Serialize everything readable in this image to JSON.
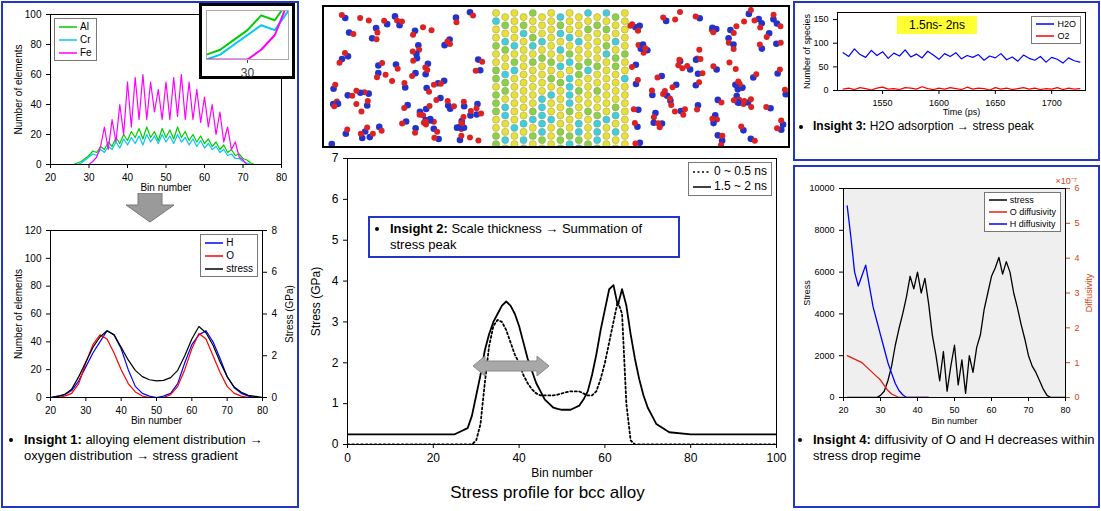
{
  "chart_data": [
    {
      "type": "line",
      "xlabel": "Bin number",
      "ylabel": "Number of elements",
      "x": [
        20,
        21,
        22,
        23,
        24,
        25,
        26,
        27,
        28,
        29,
        30,
        31,
        32,
        33,
        34,
        35,
        36,
        37,
        38,
        39,
        40,
        41,
        42,
        43,
        44,
        45,
        46,
        47,
        48,
        49,
        50,
        51,
        52,
        53,
        54,
        55,
        56,
        57,
        58,
        59,
        60,
        61,
        62,
        63,
        64,
        65,
        66,
        67,
        68,
        69,
        70,
        71,
        72,
        73,
        74,
        75,
        76,
        77,
        78,
        79,
        80
      ],
      "xlim": [
        20,
        80
      ],
      "xticks": [
        20,
        30,
        40,
        50,
        60,
        70,
        80
      ],
      "ylim": [
        0,
        100
      ],
      "yticks": [
        0,
        20,
        40,
        60,
        80,
        100
      ],
      "grid": false,
      "legend": "top-left",
      "series": [
        {
          "name": "Al",
          "color": "#00cc00",
          "values": [
            0,
            0,
            0,
            0,
            0,
            0,
            0,
            1,
            2,
            4,
            6,
            9,
            8,
            12,
            10,
            15,
            12,
            18,
            14,
            20,
            16,
            22,
            18,
            24,
            17,
            25,
            18,
            22,
            16,
            24,
            18,
            23,
            17,
            25,
            18,
            22,
            16,
            20,
            15,
            19,
            14,
            17,
            12,
            15,
            10,
            13,
            8,
            10,
            6,
            7,
            4,
            3,
            1,
            0,
            0,
            0,
            0,
            0,
            0,
            0,
            0
          ]
        },
        {
          "name": "Cr",
          "color": "#00c8f0",
          "values": [
            0,
            0,
            0,
            0,
            0,
            0,
            0,
            0,
            1,
            3,
            5,
            7,
            6,
            10,
            8,
            12,
            10,
            15,
            11,
            17,
            13,
            18,
            14,
            19,
            13,
            20,
            15,
            19,
            14,
            20,
            15,
            19,
            14,
            20,
            15,
            18,
            13,
            17,
            12,
            16,
            11,
            14,
            10,
            12,
            8,
            10,
            6,
            7,
            4,
            4,
            2,
            1,
            0,
            0,
            0,
            0,
            0,
            0,
            0,
            0,
            0
          ]
        },
        {
          "name": "Fe",
          "color": "#ff00ff",
          "values": [
            0,
            0,
            0,
            0,
            0,
            0,
            0,
            0,
            0,
            0,
            0,
            2,
            5,
            12,
            25,
            10,
            30,
            15,
            40,
            20,
            55,
            25,
            58,
            30,
            60,
            30,
            55,
            35,
            50,
            30,
            55,
            30,
            58,
            32,
            60,
            30,
            55,
            30,
            50,
            28,
            45,
            25,
            40,
            20,
            35,
            15,
            25,
            10,
            15,
            5,
            3,
            0,
            0,
            0,
            0,
            0,
            0,
            0,
            0,
            0,
            0
          ]
        }
      ],
      "inset": {
        "xlim": [
          27,
          33
        ],
        "ylim": [
          0,
          10
        ],
        "xticks": [
          30
        ],
        "tick_labels": "x"
      }
    },
    {
      "type": "line",
      "xlabel": "Bin number",
      "ylabel": "Number of elements",
      "y2label": "Stress (GPa)",
      "x": [
        20,
        22,
        24,
        26,
        28,
        30,
        32,
        34,
        36,
        38,
        40,
        42,
        44,
        46,
        48,
        50,
        52,
        54,
        56,
        58,
        60,
        62,
        64,
        66,
        68,
        70,
        72,
        74,
        76,
        78,
        80
      ],
      "xlim": [
        20,
        80
      ],
      "xticks": [
        20,
        30,
        40,
        50,
        60,
        70,
        80
      ],
      "ylim": [
        0,
        120
      ],
      "yticks": [
        0,
        20,
        40,
        60,
        80,
        100,
        120
      ],
      "y2lim": [
        0,
        8
      ],
      "y2ticks": [
        0,
        2,
        4,
        6,
        8
      ],
      "grid": false,
      "legend": "top-right",
      "series": [
        {
          "name": "H",
          "color": "#0000ff",
          "values": [
            0,
            1,
            2,
            5,
            12,
            22,
            32,
            40,
            48,
            45,
            35,
            20,
            8,
            3,
            1,
            0,
            1,
            3,
            10,
            25,
            38,
            45,
            48,
            40,
            28,
            15,
            7,
            3,
            1,
            0,
            0
          ]
        },
        {
          "name": "O",
          "color": "#ff0000",
          "values": [
            0,
            0,
            1,
            3,
            10,
            25,
            38,
            45,
            42,
            32,
            20,
            10,
            4,
            1,
            0,
            0,
            0,
            2,
            8,
            20,
            35,
            46,
            42,
            30,
            18,
            8,
            3,
            1,
            0,
            0,
            0
          ]
        },
        {
          "name": "stress",
          "color": "#000000",
          "axis": "y2",
          "values": [
            0,
            0.05,
            0.15,
            0.4,
            1.0,
            1.7,
            2.4,
            2.9,
            3.2,
            3.0,
            2.4,
            1.8,
            1.3,
            1.0,
            0.85,
            0.8,
            0.82,
            0.95,
            1.3,
            2.0,
            2.8,
            3.4,
            3.1,
            2.5,
            1.7,
            1.0,
            0.5,
            0.25,
            0.1,
            0.05,
            0
          ]
        }
      ],
      "annotations": [
        "Insight 1: alloying element distribution → oxygen distribution → stress gradient"
      ]
    },
    {
      "type": "line",
      "title": "Stress profile for bcc alloy",
      "xlabel": "Bin number",
      "ylabel": "Stress (GPa)",
      "x": [
        0,
        5,
        10,
        15,
        20,
        25,
        28,
        29,
        30,
        31,
        32,
        33,
        34,
        35,
        36,
        37,
        38,
        39,
        40,
        41,
        42,
        43,
        44,
        45,
        46,
        47,
        48,
        49,
        50,
        51,
        52,
        53,
        54,
        55,
        56,
        57,
        58,
        59,
        60,
        61,
        62,
        63,
        64,
        65,
        66,
        67,
        68,
        69,
        70,
        71,
        72,
        75,
        80,
        85,
        90,
        95,
        100
      ],
      "xlim": [
        0,
        100
      ],
      "xticks": [
        0,
        20,
        40,
        60,
        80,
        100
      ],
      "ylim": [
        0,
        7
      ],
      "yticks": [
        0,
        1,
        2,
        3,
        4,
        5,
        6,
        7
      ],
      "grid": false,
      "legend": "top-right",
      "series": [
        {
          "name": "0 ~ 0.5 ns",
          "color": "#000000",
          "line_style": "dotted",
          "values": [
            0,
            0,
            0,
            0,
            0,
            0,
            0,
            0,
            0.1,
            0.5,
            1.5,
            2.4,
            2.9,
            3.05,
            3.0,
            2.8,
            2.5,
            2.2,
            2.0,
            1.7,
            1.5,
            1.35,
            1.25,
            1.2,
            1.2,
            1.2,
            1.2,
            1.22,
            1.25,
            1.28,
            1.3,
            1.3,
            1.3,
            1.25,
            1.2,
            1.2,
            1.3,
            1.6,
            2.0,
            2.5,
            3.0,
            3.5,
            3.2,
            1.0,
            0.1,
            0,
            0,
            0,
            0,
            0,
            0,
            0,
            0,
            0,
            0,
            0,
            0
          ]
        },
        {
          "name": "1.5 ~ 2 ns",
          "color": "#000000",
          "line_style": "solid",
          "values": [
            0.25,
            0.25,
            0.25,
            0.25,
            0.25,
            0.25,
            0.4,
            0.7,
            1.2,
            1.7,
            2.3,
            2.7,
            3.0,
            3.2,
            3.4,
            3.5,
            3.4,
            3.2,
            2.9,
            2.5,
            2.1,
            1.8,
            1.5,
            1.3,
            1.1,
            1.0,
            0.9,
            0.87,
            0.85,
            0.85,
            0.85,
            0.9,
            0.95,
            1.1,
            1.3,
            1.7,
            2.2,
            2.8,
            3.3,
            3.8,
            3.9,
            3.4,
            3.8,
            3.4,
            2.7,
            2.1,
            1.6,
            1.2,
            0.9,
            0.7,
            0.5,
            0.3,
            0.25,
            0.25,
            0.25,
            0.25,
            0.25
          ]
        }
      ],
      "annotations": [
        "Insight 2: Scale thickness → Summation of stress peak"
      ]
    },
    {
      "type": "line",
      "xlabel": "Time (ps)",
      "ylabel": "Number of species",
      "x": [
        1515,
        1520,
        1525,
        1530,
        1535,
        1540,
        1545,
        1550,
        1555,
        1560,
        1565,
        1570,
        1575,
        1580,
        1585,
        1590,
        1595,
        1600,
        1605,
        1610,
        1615,
        1620,
        1625,
        1630,
        1635,
        1640,
        1645,
        1650,
        1655,
        1660,
        1665,
        1670,
        1675,
        1680,
        1685,
        1690,
        1695,
        1700,
        1705,
        1710,
        1715,
        1720,
        1725
      ],
      "xlim": [
        1510,
        1730
      ],
      "xticks": [
        1550,
        1600,
        1650,
        1700
      ],
      "ylim": [
        0,
        165
      ],
      "yticks": [
        0,
        50,
        100,
        150
      ],
      "grid": false,
      "legend": "top-right",
      "series": [
        {
          "name": "H2O",
          "color": "#0000ff",
          "values": [
            80,
            72,
            88,
            76,
            70,
            85,
            74,
            82,
            68,
            79,
            73,
            86,
            71,
            77,
            69,
            83,
            75,
            66,
            78,
            72,
            80,
            67,
            74,
            70,
            76,
            64,
            73,
            69,
            78,
            65,
            71,
            62,
            75,
            68,
            64,
            72,
            60,
            70,
            66,
            58,
            69,
            63,
            60
          ]
        },
        {
          "name": "O2",
          "color": "#ff0000",
          "values": [
            3,
            5,
            2,
            6,
            4,
            1,
            5,
            7,
            3,
            4,
            2,
            6,
            5,
            3,
            8,
            4,
            2,
            5,
            3,
            6,
            4,
            2,
            7,
            3,
            5,
            4,
            1,
            6,
            3,
            5,
            2,
            4,
            6,
            3,
            5,
            2,
            4,
            3,
            6,
            2,
            5,
            3,
            4
          ]
        }
      ],
      "highlight": "1.5ns- 2ns",
      "annotations": [
        "Insight 3: H2O adsorption → stress peak"
      ]
    },
    {
      "type": "line",
      "xlabel": "Bin number",
      "ylabel": "Stress",
      "y2label": "Diffusivity",
      "y2_multiplier": "×10⁻⁷",
      "x": [
        21,
        22,
        23,
        24,
        25,
        26,
        27,
        28,
        29,
        30,
        31,
        32,
        33,
        34,
        35,
        36,
        37,
        38,
        39,
        40,
        41,
        42,
        43,
        44,
        45,
        46,
        47,
        48,
        49,
        50,
        51,
        52,
        53,
        54,
        55,
        56,
        57,
        58,
        59,
        60,
        61,
        62,
        63,
        64,
        65,
        66,
        67,
        68,
        69,
        70,
        71,
        72,
        73,
        74,
        75,
        76,
        77,
        78,
        79,
        80
      ],
      "xlim": [
        20,
        80
      ],
      "xticks": [
        20,
        30,
        40,
        50,
        60,
        70,
        80
      ],
      "ylim": [
        0,
        10000
      ],
      "yticks": [
        0,
        2000,
        4000,
        6000,
        8000,
        10000
      ],
      "y2lim": [
        0,
        6
      ],
      "y2ticks": [
        0,
        1,
        2,
        3,
        4,
        5,
        6
      ],
      "grid": false,
      "legend": "top-right",
      "series": [
        {
          "name": "stress",
          "color": "#000000",
          "values": [
            0,
            0,
            0,
            0,
            0,
            0,
            0,
            0,
            0,
            100,
            300,
            800,
            1500,
            2500,
            3300,
            4000,
            4800,
            5800,
            5200,
            6000,
            5000,
            5700,
            4500,
            3000,
            2000,
            800,
            2200,
            300,
            1500,
            2500,
            600,
            1800,
            200,
            2000,
            1200,
            2400,
            3000,
            4200,
            5000,
            5800,
            6200,
            6700,
            5900,
            6500,
            6000,
            5000,
            4300,
            3500,
            2800,
            2000,
            1500,
            1200,
            800,
            400,
            100,
            0,
            0,
            0,
            0,
            0
          ]
        },
        {
          "name": "O diffusivity",
          "color": "#e02010",
          "axis": "y2",
          "values": [
            1.2,
            1.15,
            1.1,
            1.05,
            1.0,
            0.9,
            0.8,
            0.7,
            0.6,
            0.5,
            0.35,
            0.2,
            0.1,
            0.05,
            0,
            0,
            0,
            0,
            0,
            0,
            0,
            0,
            0,
            null,
            null,
            null,
            null,
            null,
            null,
            null,
            null,
            null,
            null,
            null,
            null,
            null,
            null,
            null,
            null,
            null,
            null,
            null,
            null,
            null,
            null,
            null,
            null,
            null,
            null,
            null,
            null,
            null,
            null,
            null,
            null,
            null,
            null,
            null,
            null,
            null
          ]
        },
        {
          "name": "H diffusivity",
          "color": "#0000ff",
          "axis": "y2",
          "values": [
            5.5,
            4.6,
            3.6,
            3.2,
            3.5,
            3.8,
            3.2,
            2.6,
            2.2,
            1.8,
            1.4,
            1.0,
            0.7,
            0.4,
            0.2,
            0.08,
            0,
            0,
            0,
            0,
            0,
            0,
            0,
            null,
            null,
            null,
            null,
            null,
            null,
            null,
            null,
            null,
            null,
            null,
            null,
            null,
            null,
            null,
            null,
            null,
            null,
            null,
            null,
            null,
            null,
            null,
            null,
            null,
            null,
            null,
            null,
            null,
            null,
            null,
            null,
            null,
            null,
            null,
            null,
            null
          ]
        }
      ],
      "annotations": [
        "Insight 4: diffusivity of O and H decreases within stress drop regime"
      ]
    }
  ]
}
